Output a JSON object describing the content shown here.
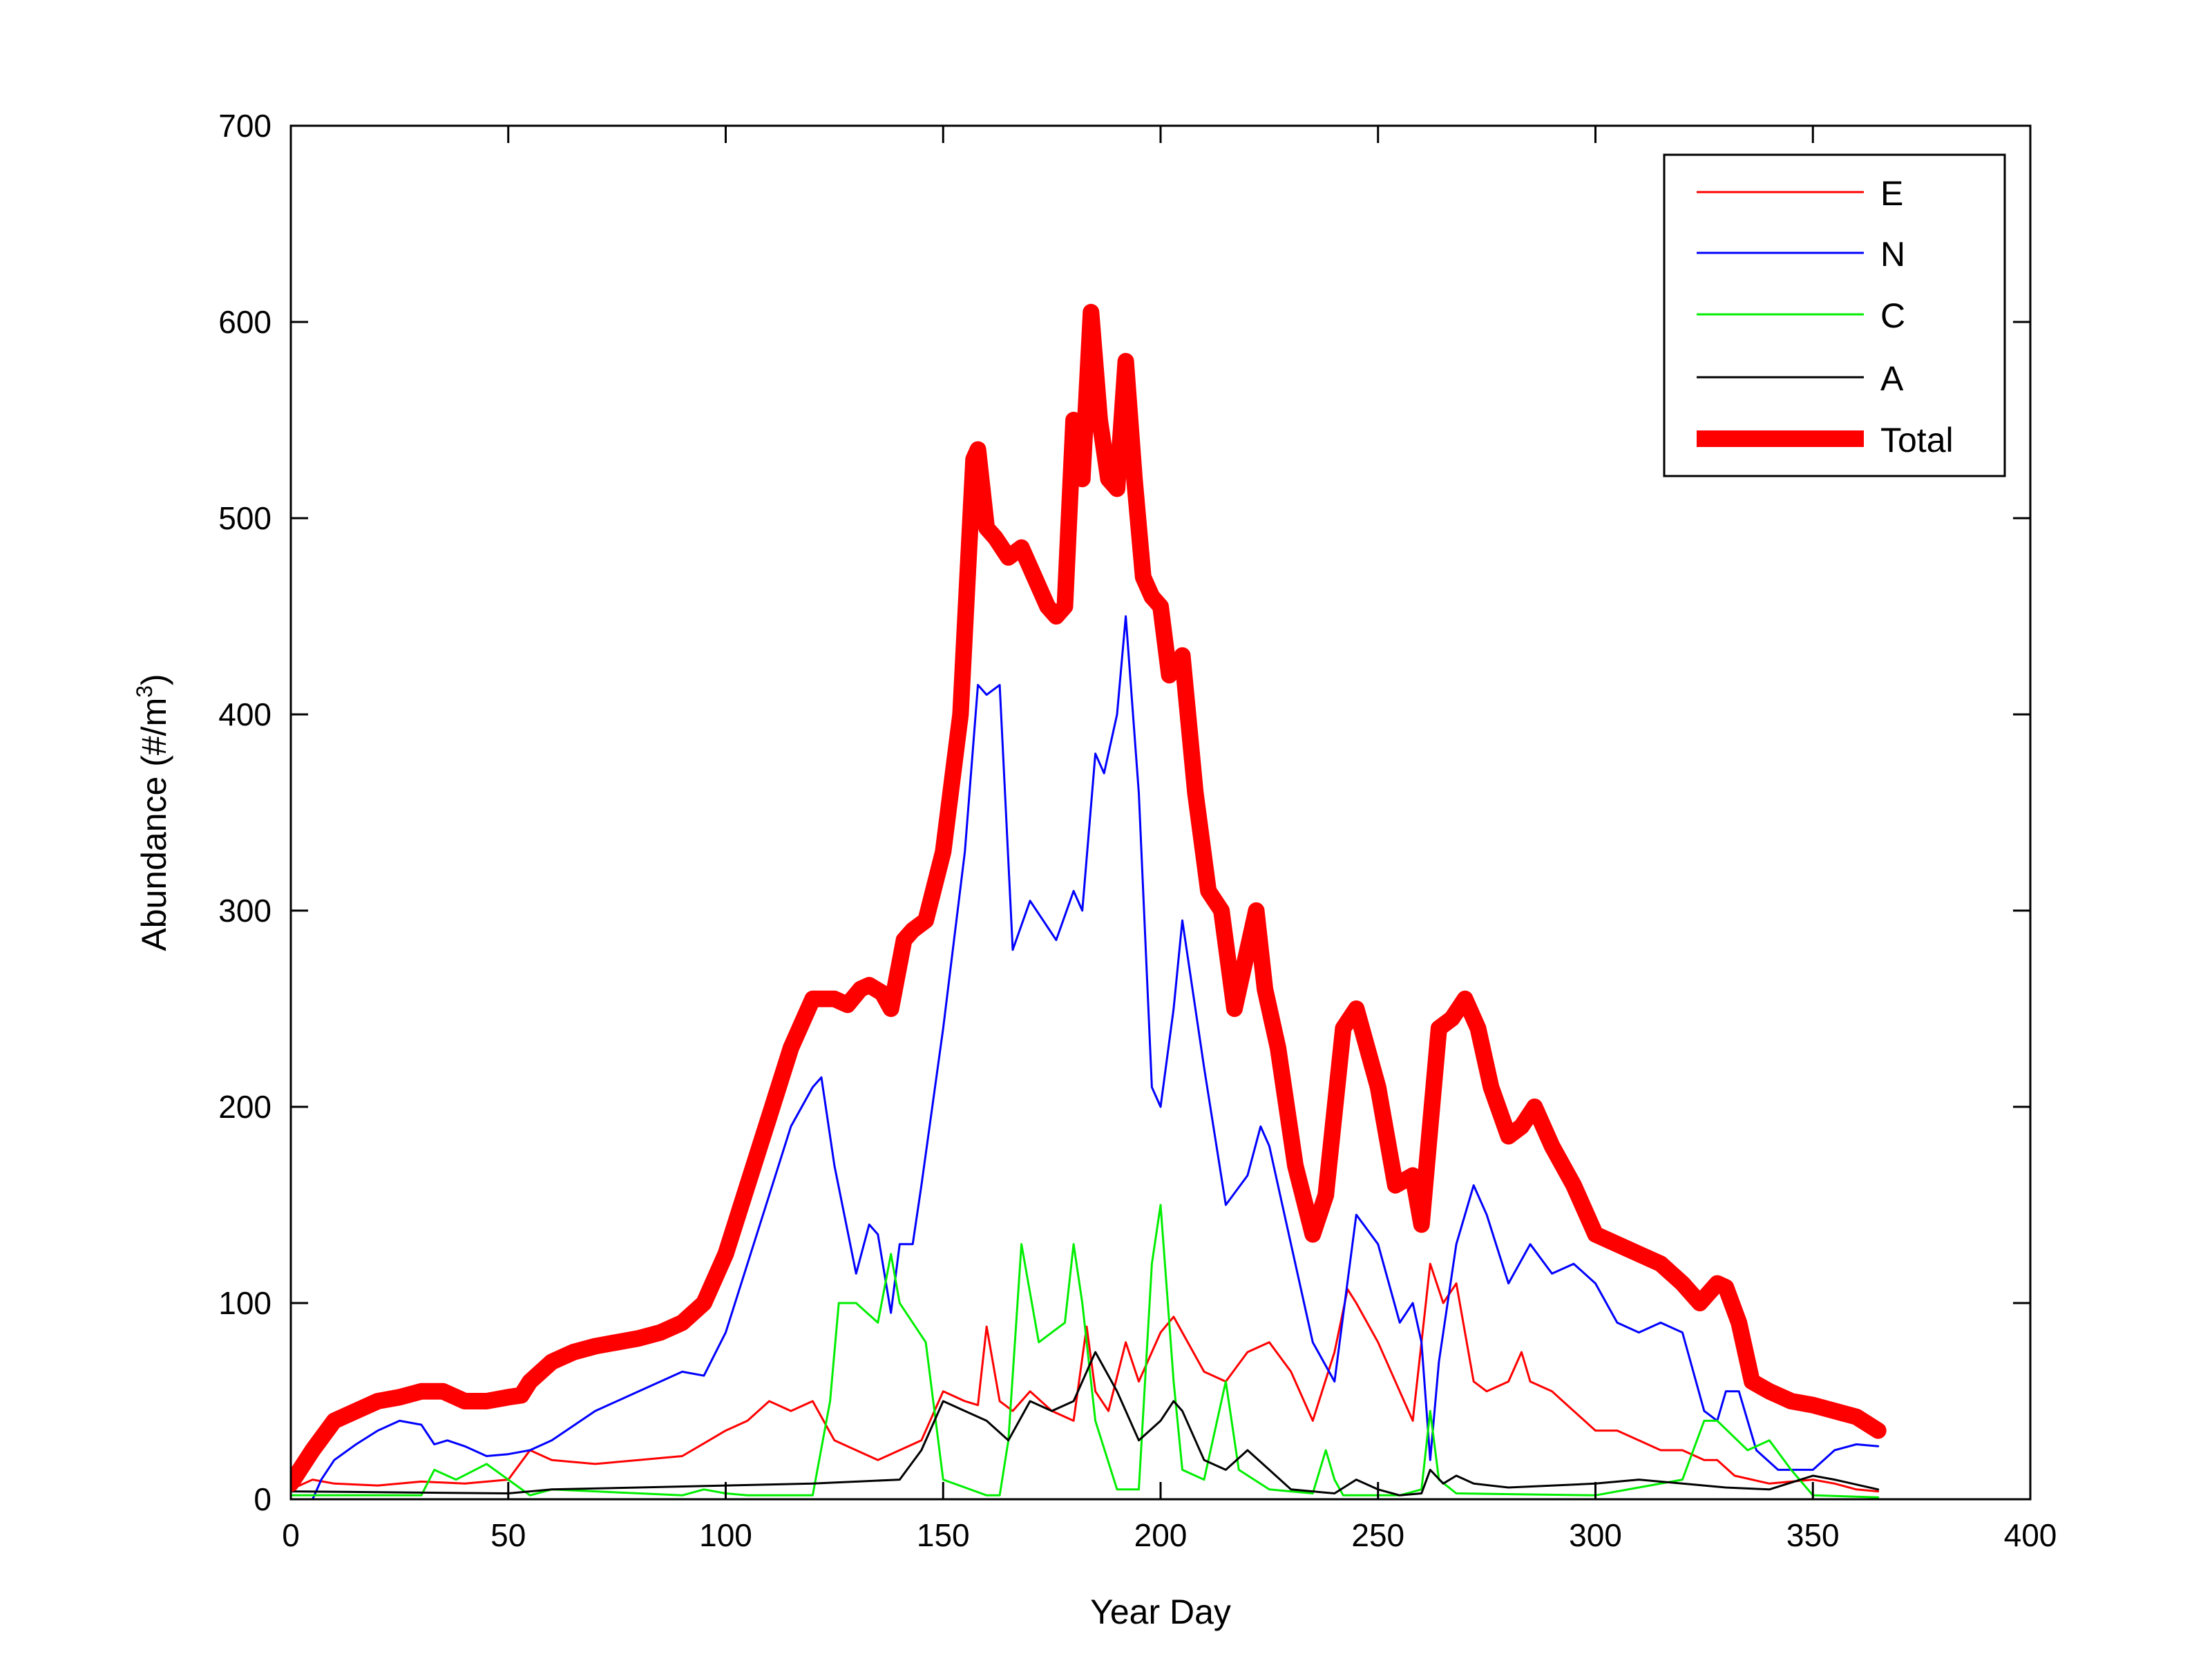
{
  "chart_data": {
    "type": "line",
    "title": "",
    "xlabel": "Year Day",
    "ylabel_main": "Abundance (#/m",
    "ylabel_sup": "3",
    "ylabel_close": ")",
    "xlim": [
      0,
      400
    ],
    "ylim": [
      0,
      700
    ],
    "xticks": [
      "0",
      "50",
      "100",
      "150",
      "200",
      "250",
      "300",
      "350",
      "400"
    ],
    "yticks": [
      "0",
      "100",
      "200",
      "300",
      "400",
      "500",
      "600",
      "700"
    ],
    "grid": false,
    "legend_position": "top-right",
    "series": [
      {
        "name": "E",
        "color": "#ff0000",
        "style": "thin",
        "x": [
          0,
          5,
          10,
          20,
          30,
          40,
          50,
          55,
          60,
          70,
          80,
          90,
          100,
          105,
          110,
          115,
          120,
          125,
          130,
          135,
          140,
          145,
          150,
          155,
          158,
          160,
          163,
          166,
          170,
          175,
          180,
          183,
          185,
          188,
          192,
          195,
          200,
          203,
          205,
          210,
          215,
          220,
          225,
          230,
          235,
          240,
          243,
          245,
          250,
          255,
          258,
          262,
          265,
          268,
          272,
          275,
          280,
          283,
          285,
          290,
          295,
          300,
          305,
          310,
          315,
          320,
          325,
          328,
          332,
          340,
          350,
          355,
          360,
          365
        ],
        "y": [
          5,
          10,
          8,
          7,
          9,
          8,
          10,
          25,
          20,
          18,
          20,
          22,
          35,
          40,
          50,
          45,
          50,
          30,
          25,
          20,
          25,
          30,
          55,
          50,
          48,
          88,
          50,
          45,
          55,
          45,
          40,
          88,
          55,
          45,
          80,
          60,
          85,
          93,
          85,
          65,
          60,
          75,
          80,
          65,
          40,
          75,
          107,
          100,
          80,
          55,
          40,
          120,
          100,
          110,
          60,
          55,
          60,
          75,
          60,
          55,
          45,
          35,
          35,
          30,
          25,
          25,
          20,
          20,
          12,
          8,
          10,
          8,
          5,
          4
        ]
      },
      {
        "name": "N",
        "color": "#0000ff",
        "style": "thin",
        "x": [
          0,
          5,
          7,
          10,
          15,
          20,
          25,
          30,
          33,
          36,
          40,
          45,
          50,
          55,
          60,
          70,
          80,
          90,
          95,
          100,
          105,
          110,
          115,
          120,
          122,
          125,
          130,
          133,
          135,
          138,
          140,
          143,
          145,
          150,
          155,
          158,
          160,
          163,
          166,
          170,
          173,
          176,
          180,
          182,
          185,
          187,
          190,
          192,
          195,
          198,
          200,
          203,
          205,
          210,
          215,
          220,
          223,
          225,
          230,
          235,
          240,
          245,
          250,
          255,
          258,
          260,
          262,
          264,
          268,
          272,
          275,
          280,
          285,
          290,
          295,
          300,
          305,
          310,
          315,
          320,
          325,
          328,
          330,
          333,
          337,
          342,
          350,
          355,
          360,
          365
        ],
        "y": [
          0,
          0,
          10,
          20,
          28,
          35,
          40,
          38,
          28,
          30,
          27,
          22,
          23,
          25,
          30,
          45,
          55,
          65,
          63,
          85,
          120,
          155,
          190,
          210,
          215,
          170,
          115,
          140,
          135,
          95,
          130,
          130,
          160,
          240,
          330,
          415,
          410,
          415,
          280,
          305,
          295,
          285,
          310,
          300,
          380,
          370,
          400,
          450,
          360,
          210,
          200,
          250,
          295,
          220,
          150,
          165,
          190,
          180,
          130,
          80,
          60,
          145,
          130,
          90,
          100,
          80,
          20,
          70,
          130,
          160,
          145,
          110,
          130,
          115,
          120,
          110,
          90,
          85,
          90,
          85,
          45,
          40,
          55,
          55,
          25,
          15,
          15,
          25,
          28,
          27
        ]
      },
      {
        "name": "C",
        "color": "#00ee00",
        "style": "thin",
        "x": [
          0,
          30,
          33,
          38,
          45,
          50,
          55,
          60,
          90,
          95,
          100,
          105,
          120,
          124,
          126,
          130,
          135,
          138,
          140,
          143,
          146,
          150,
          160,
          163,
          165,
          168,
          172,
          175,
          178,
          180,
          182,
          185,
          190,
          195,
          198,
          200,
          203,
          205,
          210,
          213,
          215,
          218,
          225,
          235,
          238,
          240,
          242,
          255,
          260,
          262,
          264,
          268,
          300,
          320,
          325,
          328,
          335,
          340,
          345,
          350,
          365
        ],
        "y": [
          2,
          2,
          15,
          10,
          18,
          10,
          2,
          5,
          2,
          5,
          3,
          2,
          2,
          50,
          100,
          100,
          90,
          125,
          100,
          90,
          80,
          10,
          2,
          2,
          30,
          130,
          80,
          85,
          90,
          130,
          100,
          40,
          5,
          5,
          120,
          150,
          60,
          15,
          10,
          40,
          60,
          15,
          5,
          3,
          25,
          10,
          2,
          2,
          5,
          45,
          10,
          3,
          2,
          10,
          40,
          40,
          25,
          30,
          15,
          2,
          1
        ]
      },
      {
        "name": "A",
        "color": "#000000",
        "style": "thin",
        "x": [
          0,
          50,
          60,
          80,
          100,
          120,
          140,
          145,
          150,
          155,
          160,
          165,
          170,
          175,
          180,
          185,
          190,
          195,
          200,
          203,
          205,
          210,
          215,
          220,
          225,
          230,
          240,
          245,
          250,
          255,
          260,
          262,
          265,
          268,
          272,
          280,
          300,
          310,
          320,
          330,
          340,
          350,
          355,
          365
        ],
        "y": [
          4,
          3,
          5,
          6,
          7,
          8,
          10,
          25,
          50,
          45,
          40,
          30,
          50,
          45,
          50,
          75,
          55,
          30,
          40,
          50,
          45,
          20,
          15,
          25,
          15,
          5,
          3,
          10,
          5,
          2,
          3,
          15,
          8,
          12,
          8,
          6,
          8,
          10,
          8,
          6,
          5,
          12,
          10,
          5
        ]
      },
      {
        "name": "Total",
        "color": "#ff0000",
        "style": "thick",
        "x": [
          0,
          5,
          10,
          15,
          20,
          25,
          30,
          35,
          40,
          45,
          50,
          53,
          55,
          60,
          65,
          70,
          75,
          80,
          85,
          90,
          95,
          100,
          105,
          110,
          115,
          120,
          125,
          128,
          131,
          133,
          136,
          138,
          141,
          143,
          146,
          150,
          154,
          157,
          158,
          160,
          162,
          165,
          168,
          172,
          174,
          176,
          178,
          180,
          182,
          184,
          186,
          188,
          190,
          192,
          194,
          196,
          198,
          200,
          202,
          205,
          208,
          211,
          214,
          217,
          220,
          222,
          224,
          227,
          231,
          235,
          238,
          242,
          245,
          250,
          254,
          258,
          260,
          262,
          264,
          267,
          270,
          273,
          276,
          280,
          283,
          286,
          290,
          295,
          300,
          305,
          310,
          315,
          320,
          324,
          328,
          330,
          333,
          336,
          340,
          345,
          350,
          355,
          360,
          365
        ],
        "y": [
          8,
          25,
          40,
          45,
          50,
          52,
          55,
          55,
          50,
          50,
          52,
          53,
          60,
          70,
          75,
          78,
          80,
          82,
          85,
          90,
          100,
          125,
          160,
          195,
          230,
          255,
          255,
          252,
          260,
          262,
          258,
          250,
          285,
          290,
          295,
          330,
          400,
          530,
          535,
          495,
          490,
          480,
          485,
          465,
          455,
          450,
          455,
          550,
          520,
          605,
          550,
          520,
          515,
          580,
          520,
          470,
          460,
          455,
          420,
          430,
          360,
          310,
          300,
          250,
          280,
          300,
          260,
          230,
          170,
          135,
          155,
          240,
          250,
          210,
          160,
          165,
          140,
          190,
          240,
          245,
          255,
          240,
          210,
          185,
          190,
          200,
          180,
          160,
          135,
          130,
          125,
          120,
          110,
          100,
          110,
          108,
          90,
          60,
          55,
          50,
          48,
          45,
          42,
          35
        ]
      }
    ]
  }
}
